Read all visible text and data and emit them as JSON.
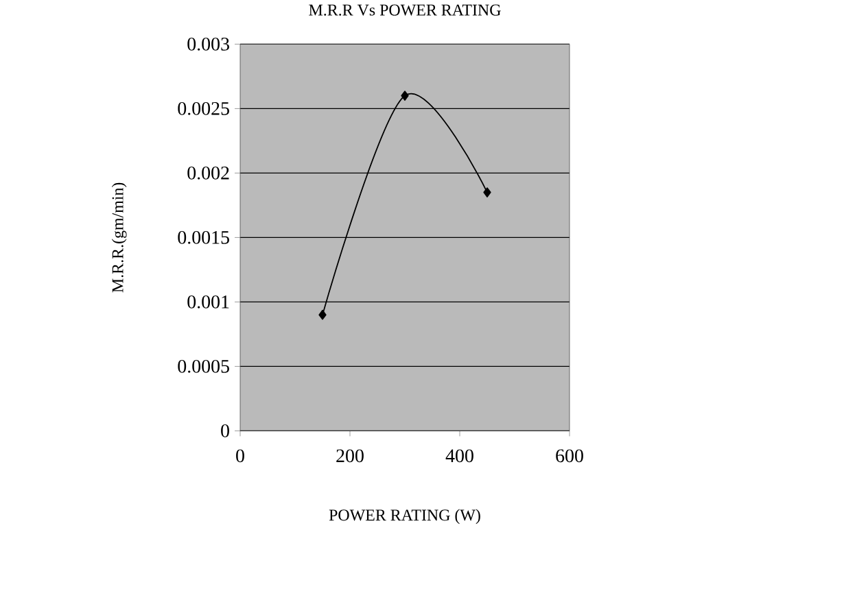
{
  "chart_data": {
    "type": "line",
    "title": "M.R.R Vs POWER RATING",
    "xlabel": "POWER RATING (W)",
    "ylabel": "M.R.R.(gm/min)",
    "x": [
      150,
      300,
      450
    ],
    "series": [
      {
        "color": "#000000",
        "values": [
          0.0009,
          0.0026,
          0.00185
        ]
      }
    ],
    "xlim": [
      0,
      600
    ],
    "xticks": [
      0,
      200,
      400,
      600
    ],
    "ylim": [
      0,
      0.003
    ],
    "yticks": [
      0,
      0.0005,
      0.001,
      0.0015,
      0.002,
      0.0025,
      0.003
    ],
    "grid": "y",
    "marker": "diamond",
    "line_style": "solid"
  }
}
